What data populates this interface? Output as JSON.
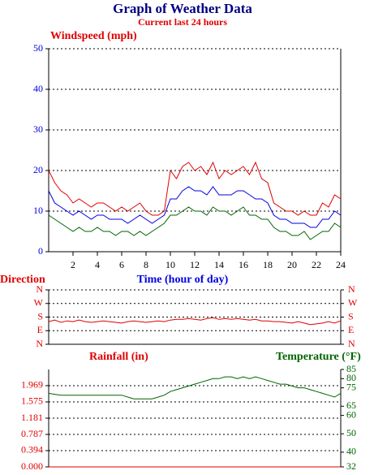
{
  "chart_data": [
    {
      "type": "line",
      "title": "Graph of Weather Data",
      "subtitle": "Current last 24 hours",
      "ylabel": "Windspeed (mph)",
      "xlabel": "Time (hour of day)",
      "x": [
        0,
        0.5,
        1,
        1.5,
        2,
        2.5,
        3,
        3.5,
        4,
        4.5,
        5,
        5.5,
        6,
        6.5,
        7,
        7.5,
        8,
        8.5,
        9,
        9.5,
        10,
        10.5,
        11,
        11.5,
        12,
        12.5,
        13,
        13.5,
        14,
        14.5,
        15,
        15.5,
        16,
        16.5,
        17,
        17.5,
        18,
        18.5,
        19,
        19.5,
        20,
        20.5,
        21,
        21.5,
        22,
        22.5,
        23,
        23.5,
        24
      ],
      "series": [
        {
          "color": "#e00000",
          "values": [
            20,
            17,
            15,
            14,
            12,
            13,
            12,
            11,
            12,
            12,
            11,
            10,
            11,
            10,
            11,
            12,
            10,
            9,
            9,
            10,
            20,
            18,
            21,
            22,
            20,
            21,
            19,
            22,
            18,
            20,
            19,
            20,
            21,
            19,
            22,
            18,
            17,
            12,
            11,
            10,
            10,
            9,
            10,
            9,
            9,
            12,
            11,
            14,
            13
          ]
        },
        {
          "color": "#0000e0",
          "values": [
            15,
            12,
            11,
            10,
            9,
            10,
            9,
            8,
            9,
            9,
            8,
            8,
            8,
            7,
            8,
            9,
            8,
            7,
            8,
            9,
            13,
            13,
            15,
            16,
            15,
            15,
            14,
            16,
            14,
            14,
            14,
            15,
            15,
            14,
            13,
            13,
            12,
            9,
            8,
            8,
            7,
            7,
            7,
            6,
            6,
            8,
            8,
            10,
            9
          ]
        },
        {
          "color": "#006400",
          "values": [
            9,
            8,
            7,
            6,
            5,
            6,
            5,
            5,
            6,
            5,
            5,
            4,
            5,
            5,
            4,
            5,
            4,
            5,
            6,
            7,
            9,
            9,
            10,
            11,
            10,
            10,
            9,
            11,
            10,
            10,
            9,
            10,
            11,
            9,
            9,
            8,
            8,
            6,
            5,
            5,
            4,
            4,
            5,
            3,
            4,
            5,
            5,
            7,
            6
          ]
        }
      ],
      "xlim": [
        0,
        24
      ],
      "xticks": [
        2,
        4,
        6,
        8,
        10,
        12,
        14,
        16,
        18,
        20,
        22,
        24
      ],
      "ylim": [
        0,
        50
      ],
      "yticks": [
        0,
        10,
        20,
        30,
        40,
        50
      ],
      "grid": true
    },
    {
      "type": "line",
      "ylabel": "Direction",
      "x": [
        0,
        0.5,
        1,
        1.5,
        2,
        2.5,
        3,
        3.5,
        4,
        4.5,
        5,
        5.5,
        6,
        6.5,
        7,
        7.5,
        8,
        8.5,
        9,
        9.5,
        10,
        10.5,
        11,
        11.5,
        12,
        12.5,
        13,
        13.5,
        14,
        14.5,
        15,
        15.5,
        16,
        16.5,
        17,
        17.5,
        18,
        18.5,
        19,
        19.5,
        20,
        20.5,
        21,
        21.5,
        22,
        22.5,
        23,
        23.5,
        24
      ],
      "series": [
        {
          "color": "#e00000",
          "values": [
            150,
            160,
            145,
            155,
            150,
            160,
            150,
            145,
            150,
            155,
            150,
            145,
            140,
            150,
            155,
            150,
            145,
            150,
            155,
            150,
            160,
            165,
            165,
            170,
            165,
            160,
            170,
            175,
            165,
            170,
            165,
            170,
            165,
            160,
            165,
            155,
            155,
            150,
            150,
            145,
            140,
            150,
            140,
            130,
            135,
            140,
            150,
            140,
            155
          ]
        }
      ],
      "xlim": [
        0,
        24
      ],
      "ylim": [
        0,
        360
      ],
      "yticks": [
        {
          "value": 0,
          "label": "N"
        },
        {
          "value": 90,
          "label": "E"
        },
        {
          "value": 180,
          "label": "S"
        },
        {
          "value": 270,
          "label": "W"
        },
        {
          "value": 360,
          "label": "N"
        }
      ],
      "grid": true
    },
    {
      "type": "line",
      "ylabel": "Rainfall (in)",
      "y2label": "Temperature (°F)",
      "x": [
        0,
        0.5,
        1,
        1.5,
        2,
        2.5,
        3,
        3.5,
        4,
        4.5,
        5,
        5.5,
        6,
        6.5,
        7,
        7.5,
        8,
        8.5,
        9,
        9.5,
        10,
        10.5,
        11,
        11.5,
        12,
        12.5,
        13,
        13.5,
        14,
        14.5,
        15,
        15.5,
        16,
        16.5,
        17,
        17.5,
        18,
        18.5,
        19,
        19.5,
        20,
        20.5,
        21,
        21.5,
        22,
        22.5,
        23,
        23.5,
        24
      ],
      "series": [
        {
          "color": "#e00000",
          "values": [
            0,
            0,
            0,
            0,
            0,
            0,
            0,
            0,
            0,
            0,
            0,
            0,
            0,
            0,
            0,
            0,
            0,
            0,
            0,
            0,
            0,
            0,
            0,
            0,
            0,
            0,
            0,
            0,
            0,
            0,
            0,
            0,
            0,
            0,
            0,
            0,
            0,
            0,
            0,
            0,
            0,
            0,
            0,
            0,
            0,
            0,
            0,
            0,
            0
          ]
        },
        {
          "color": "#006400",
          "axis": "y2",
          "values": [
            72,
            71.5,
            71,
            71,
            71,
            71,
            71,
            71,
            71,
            71,
            71,
            71,
            71,
            70,
            69,
            69,
            69,
            69,
            70,
            71,
            73,
            74,
            75,
            76,
            77,
            78,
            79,
            80,
            80,
            81,
            81,
            80,
            81,
            80,
            81,
            80,
            79,
            78,
            77,
            77,
            76,
            75,
            75,
            74,
            73,
            72,
            71,
            70,
            72
          ]
        }
      ],
      "xlim": [
        0,
        24
      ],
      "ylim": [
        0,
        2.362
      ],
      "yticks": [
        {
          "value": 0,
          "label": "0.000"
        },
        0.394,
        0.787,
        1.181,
        1.575,
        1.969
      ],
      "y2lim": [
        32,
        85
      ],
      "y2ticks": [
        32,
        40,
        50,
        60,
        65,
        75,
        80,
        85
      ],
      "grid": true
    }
  ]
}
